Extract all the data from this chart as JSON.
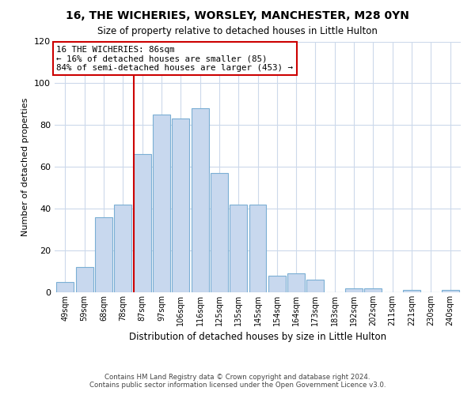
{
  "title": "16, THE WICHERIES, WORSLEY, MANCHESTER, M28 0YN",
  "subtitle": "Size of property relative to detached houses in Little Hulton",
  "xlabel": "Distribution of detached houses by size in Little Hulton",
  "ylabel": "Number of detached properties",
  "bar_labels": [
    "49sqm",
    "59sqm",
    "68sqm",
    "78sqm",
    "87sqm",
    "97sqm",
    "106sqm",
    "116sqm",
    "125sqm",
    "135sqm",
    "145sqm",
    "154sqm",
    "164sqm",
    "173sqm",
    "183sqm",
    "192sqm",
    "202sqm",
    "211sqm",
    "221sqm",
    "230sqm",
    "240sqm"
  ],
  "bar_values": [
    5,
    12,
    36,
    42,
    66,
    85,
    83,
    88,
    57,
    42,
    42,
    8,
    9,
    6,
    0,
    2,
    2,
    0,
    1,
    0,
    1
  ],
  "bar_color": "#c8d8ee",
  "bar_edge_color": "#7bafd4",
  "vline_color": "#cc0000",
  "annotation_text": "16 THE WICHERIES: 86sqm\n← 16% of detached houses are smaller (85)\n84% of semi-detached houses are larger (453) →",
  "annotation_box_color": "#ffffff",
  "annotation_box_edge": "#cc0000",
  "ylim": [
    0,
    120
  ],
  "yticks": [
    0,
    20,
    40,
    60,
    80,
    100,
    120
  ],
  "footer_line1": "Contains HM Land Registry data © Crown copyright and database right 2024.",
  "footer_line2": "Contains public sector information licensed under the Open Government Licence v3.0.",
  "bg_color": "#ffffff",
  "grid_color": "#ccd9eb"
}
